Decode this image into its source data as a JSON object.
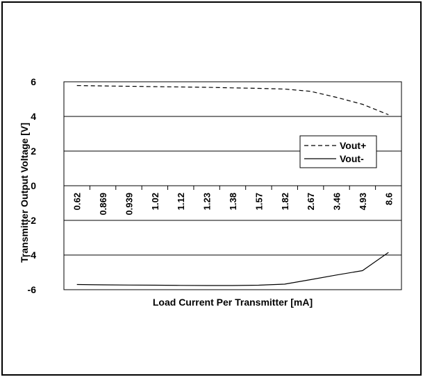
{
  "chart_data": {
    "type": "line",
    "title": "",
    "xlabel": "Load Current Per Transmitter [mA]",
    "ylabel": "Transmitter Output Voltage [V]",
    "categories": [
      "0.62",
      "0.869",
      "0.939",
      "1.02",
      "1.12",
      "1.23",
      "1.38",
      "1.57",
      "1.82",
      "2.67",
      "3.46",
      "4.93",
      "8.6"
    ],
    "yticks": [
      "6",
      "4",
      "2",
      "0",
      "-2",
      "-4",
      "-6"
    ],
    "ylim": [
      -6,
      6
    ],
    "grid": true,
    "legend_position": "right",
    "series": [
      {
        "name": "Vout+",
        "style": "dashed",
        "color": "#000000",
        "values": [
          5.78,
          5.76,
          5.74,
          5.72,
          5.7,
          5.68,
          5.65,
          5.62,
          5.58,
          5.45,
          5.1,
          4.7,
          4.1
        ]
      },
      {
        "name": "Vout-",
        "style": "solid",
        "color": "#000000",
        "values": [
          -5.7,
          -5.72,
          -5.73,
          -5.74,
          -5.75,
          -5.76,
          -5.76,
          -5.74,
          -5.68,
          -5.42,
          -5.15,
          -4.9,
          -3.85
        ]
      }
    ]
  }
}
